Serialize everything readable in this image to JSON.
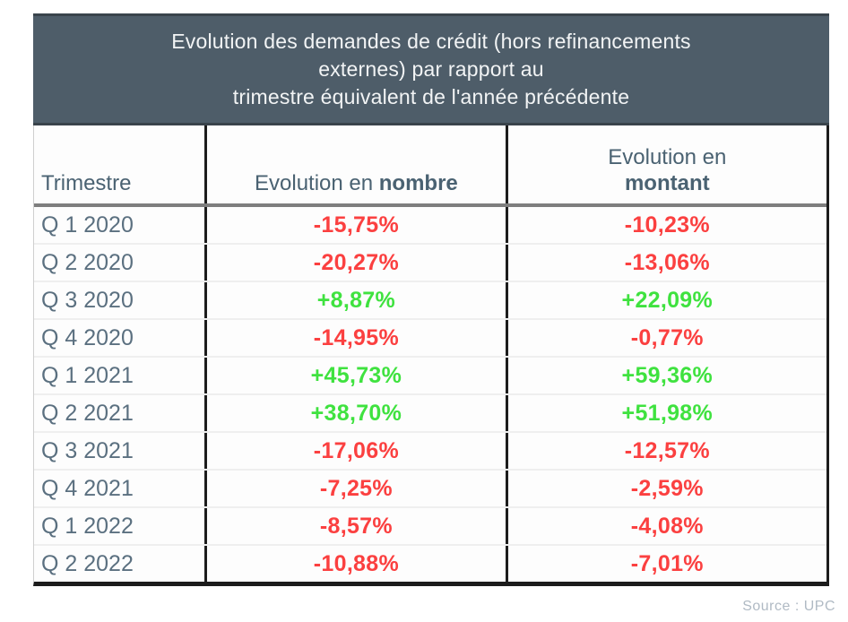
{
  "table": {
    "title": "Evolution des demandes de crédit (hors refinancements\nexternes) par rapport au\ntrimestre équivalent de l'année précédente",
    "headers": {
      "trimestre": "Trimestre",
      "nombre_prefix": "Evolution en ",
      "nombre_bold": "nombre",
      "montant_line1": "Evolution en",
      "montant_line2": "montant"
    },
    "rows": [
      {
        "trimestre": "Q 1 2020",
        "nombre": "-15,75%",
        "montant": "-10,23%"
      },
      {
        "trimestre": "Q 2 2020",
        "nombre": "-20,27%",
        "montant": "-13,06%"
      },
      {
        "trimestre": "Q 3 2020",
        "nombre": "+8,87%",
        "montant": "+22,09%"
      },
      {
        "trimestre": "Q 4 2020",
        "nombre": "-14,95%",
        "montant": "-0,77%"
      },
      {
        "trimestre": "Q 1 2021",
        "nombre": "+45,73%",
        "montant": "+59,36%"
      },
      {
        "trimestre": "Q 2 2021",
        "nombre": "+38,70%",
        "montant": "+51,98%"
      },
      {
        "trimestre": "Q 3 2021",
        "nombre": "-17,06%",
        "montant": "-12,57%"
      },
      {
        "trimestre": "Q 4 2021",
        "nombre": "-7,25%",
        "montant": "-2,59%"
      },
      {
        "trimestre": "Q 1 2022",
        "nombre": "-8,57%",
        "montant": "-4,08%"
      },
      {
        "trimestre": "Q 2 2022",
        "nombre": "-10,88%",
        "montant": "-7,01%"
      }
    ]
  },
  "source": {
    "label": "Source : UPC"
  },
  "colors": {
    "title_bg": "#4e5d69",
    "title_text": "#f2f4f5",
    "header_text": "#4a6272",
    "rowlabel_text": "#5b7080",
    "negative": "#fb4040",
    "positive": "#3fe23f",
    "source_text": "#b0bac4"
  },
  "chart_data": {
    "type": "table",
    "title": "Evolution des demandes de crédit (hors refinancements externes) par rapport au trimestre équivalent de l'année précédente",
    "columns": [
      "Trimestre",
      "Evolution en nombre",
      "Evolution en montant"
    ],
    "categories": [
      "Q 1 2020",
      "Q 2 2020",
      "Q 3 2020",
      "Q 4 2020",
      "Q 1 2021",
      "Q 2 2021",
      "Q 3 2021",
      "Q 4 2021",
      "Q 1 2022",
      "Q 2 2022"
    ],
    "series": [
      {
        "name": "Evolution en nombre",
        "unit": "%",
        "values": [
          -15.75,
          -20.27,
          8.87,
          -14.95,
          45.73,
          38.7,
          -17.06,
          -7.25,
          -8.57,
          -10.88
        ]
      },
      {
        "name": "Evolution en montant",
        "unit": "%",
        "values": [
          -10.23,
          -13.06,
          22.09,
          -0.77,
          59.36,
          51.98,
          -12.57,
          -2.59,
          -4.08,
          -7.01
        ]
      }
    ],
    "value_color_rule": "positive values green, negative values red",
    "source": "Source : UPC"
  }
}
